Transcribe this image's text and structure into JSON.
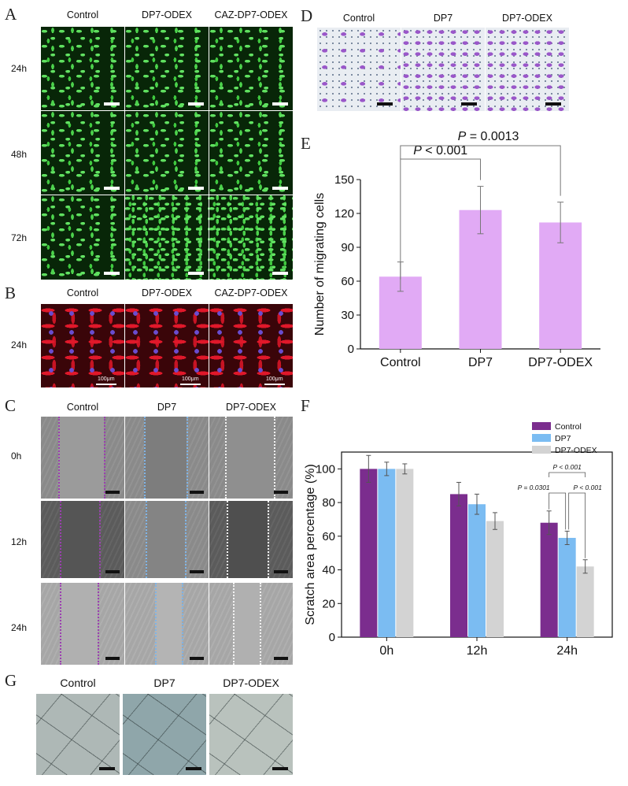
{
  "panels": {
    "A": {
      "letter": "A",
      "columns": [
        "Control",
        "DP7-ODEX",
        "CAZ-DP7-ODEX"
      ],
      "rows": [
        "24h",
        "48h",
        "72h"
      ]
    },
    "B": {
      "letter": "B",
      "columns": [
        "Control",
        "DP7-ODEX",
        "CAZ-DP7-ODEX"
      ],
      "rows": [
        "24h"
      ],
      "scalebar": "100μm"
    },
    "C": {
      "letter": "C",
      "columns": [
        "Control",
        "DP7",
        "DP7-ODEX"
      ],
      "rows": [
        "0h",
        "12h",
        "24h"
      ]
    },
    "D": {
      "letter": "D",
      "columns": [
        "Control",
        "DP7",
        "DP7-ODEX"
      ]
    },
    "E": {
      "letter": "E"
    },
    "F": {
      "letter": "F"
    },
    "G": {
      "letter": "G",
      "columns": [
        "Control",
        "DP7",
        "DP7-ODEX"
      ]
    }
  },
  "colors": {
    "control": "#7b2d8e",
    "dp7": "#7bbcf2",
    "dp7_odex": "#d3d3d3",
    "migrating_bar": "#e1aaf5",
    "scratch_control_line": "#9b3fb0",
    "scratch_dp7_line": "#7fb4e6",
    "scratch_odex_line": "#f2f2f2"
  },
  "chart_data": [
    {
      "panel": "E",
      "type": "bar",
      "categories": [
        "Control",
        "DP7",
        "DP7-ODEX"
      ],
      "values": [
        64,
        123,
        112
      ],
      "errors": [
        13,
        21,
        18
      ],
      "ylabel": "Number of migrating cells",
      "xlabel": "",
      "ylim": [
        0,
        150
      ],
      "yticks": [
        0,
        30,
        60,
        90,
        120,
        150
      ],
      "annotations": [
        {
          "italic": "P",
          "text": " < 0.001",
          "from": "Control",
          "to": "DP7"
        },
        {
          "italic": "P",
          "text": " = 0.0013",
          "from": "Control",
          "to": "DP7-ODEX"
        }
      ]
    },
    {
      "panel": "F",
      "type": "bar",
      "categories": [
        "0h",
        "12h",
        "24h"
      ],
      "series": [
        {
          "name": "Control",
          "values": [
            100,
            85,
            68
          ],
          "errors": [
            8,
            7,
            7
          ]
        },
        {
          "name": "DP7",
          "values": [
            100,
            79,
            59
          ],
          "errors": [
            4,
            6,
            4
          ]
        },
        {
          "name": "DP7-ODEX",
          "values": [
            100,
            69,
            42
          ],
          "errors": [
            3,
            5,
            4
          ]
        }
      ],
      "ylabel": "Scratch area percentage (%)",
      "xlabel": "",
      "ylim": [
        0,
        110
      ],
      "yticks": [
        0,
        20,
        40,
        60,
        80,
        100
      ],
      "legend_position": "top-right",
      "annotations": [
        {
          "text": "P < 0.001",
          "group": "24h",
          "from": "Control",
          "to": "DP7-ODEX"
        },
        {
          "text": "P = 0.0301",
          "group": "24h",
          "from": "Control",
          "to": "DP7"
        },
        {
          "text": "P < 0.001",
          "group": "24h",
          "from": "DP7",
          "to": "DP7-ODEX"
        }
      ]
    }
  ]
}
